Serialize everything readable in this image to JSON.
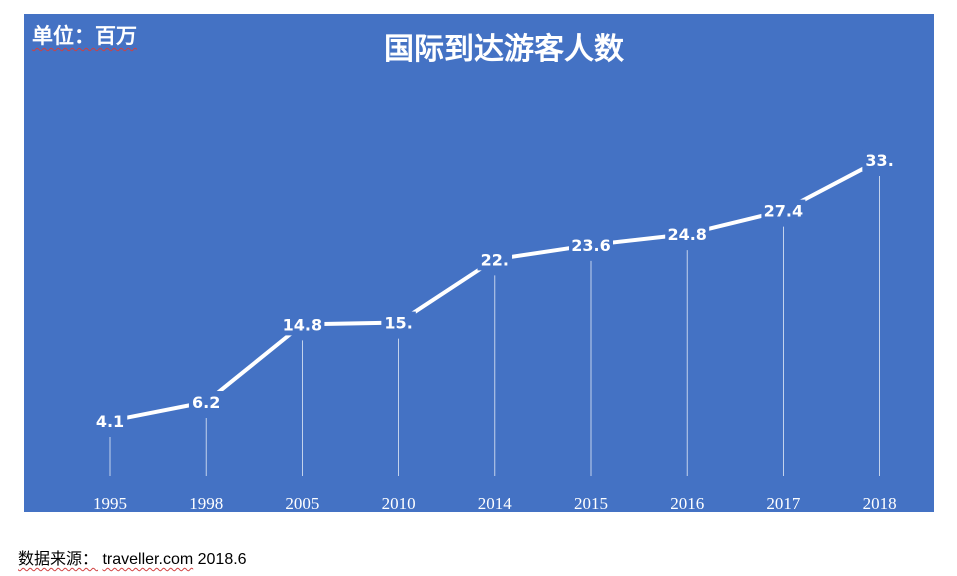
{
  "chart_data": {
    "type": "line",
    "title": "国际到达游客人数",
    "unit_label": "单位：百万",
    "categories": [
      "1995",
      "1998",
      "2005",
      "2010",
      "2014",
      "2015",
      "2016",
      "2017",
      "2018"
    ],
    "values": [
      4.1,
      6.2,
      14.8,
      15,
      22,
      23.6,
      24.8,
      27.4,
      33
    ],
    "data_labels": [
      "4.1",
      "6.2",
      "14.8",
      "15.",
      "22.",
      "23.6",
      "24.8",
      "27.4",
      "33."
    ],
    "ylim": [
      0,
      35
    ],
    "grid": false,
    "legend": "none",
    "drop_lines": true,
    "colors": {
      "background": "#4472c4",
      "line": "#ffffff",
      "text": "#ffffff"
    }
  },
  "footer": {
    "source_prefix": "数据来源：",
    "source_site": "traveller.com",
    "source_date": "2018.6"
  }
}
